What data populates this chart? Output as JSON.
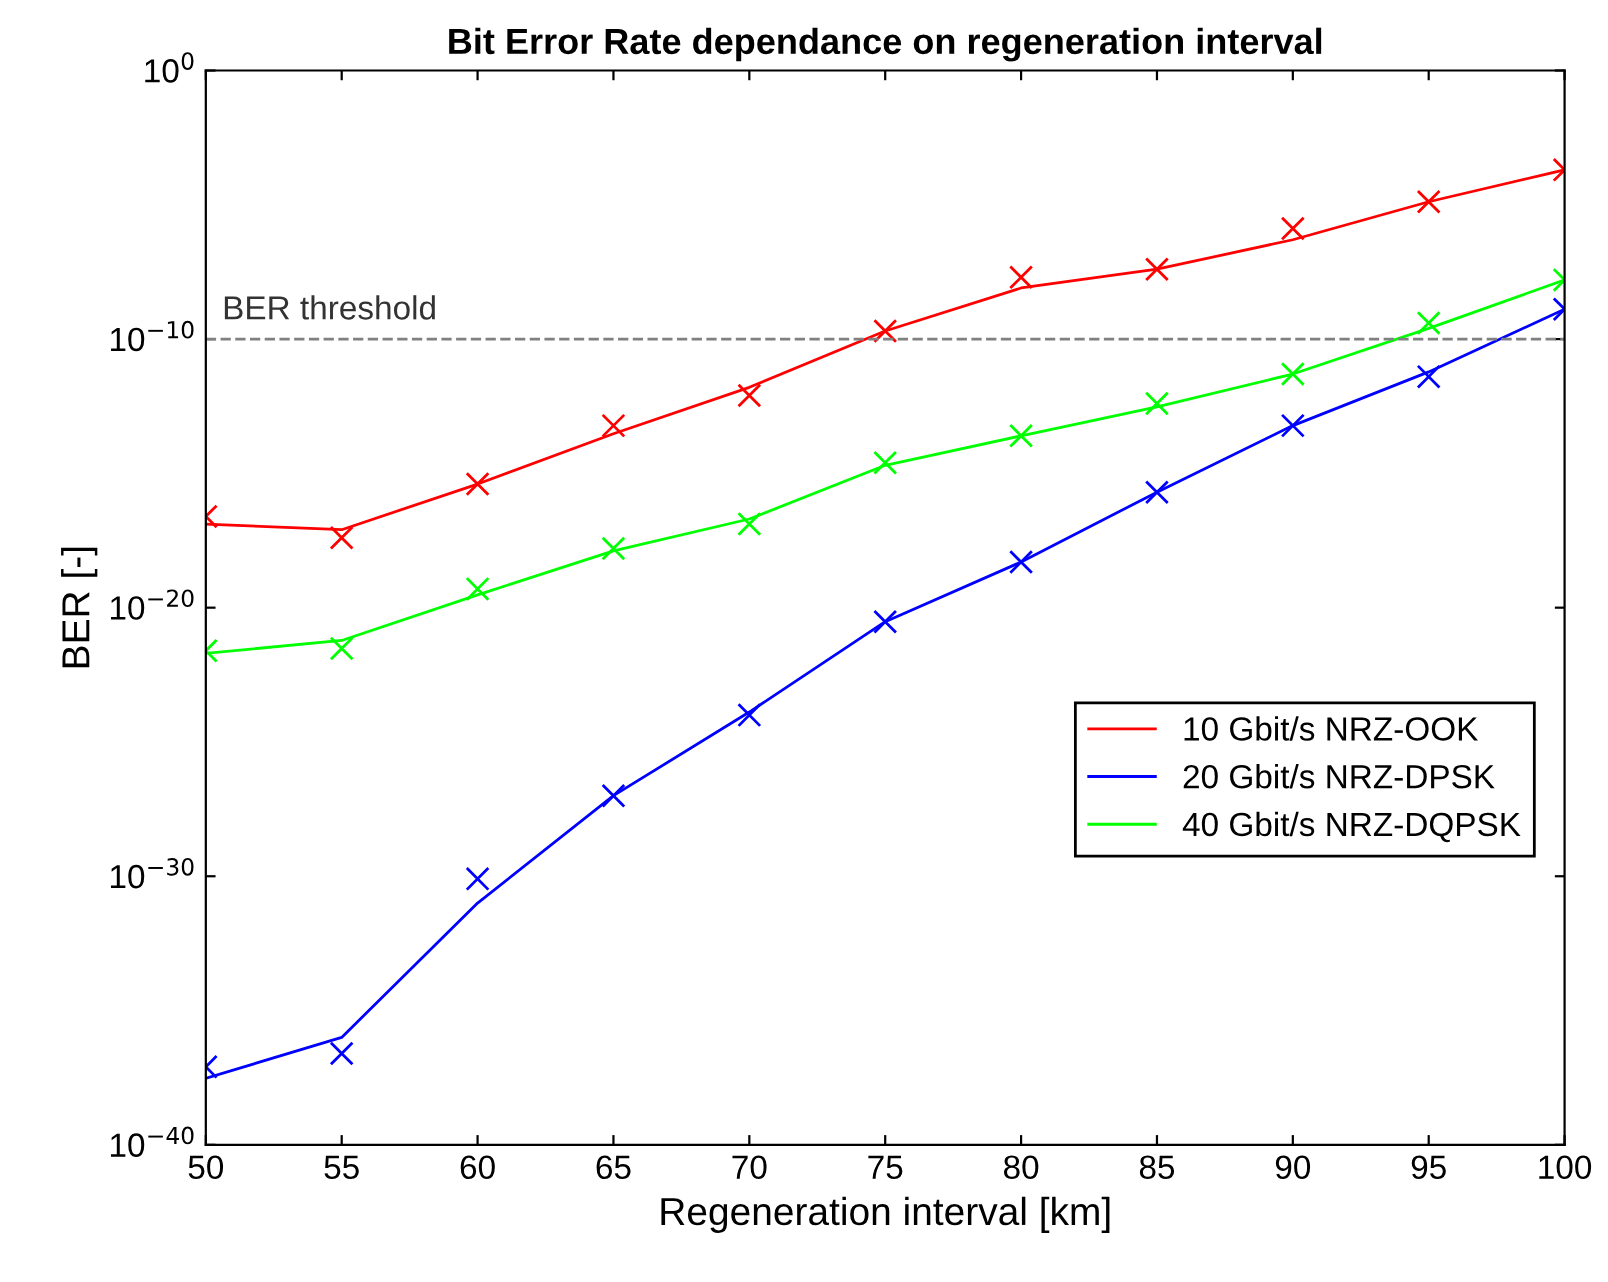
{
  "chart_data": {
    "type": "line",
    "title": "Bit Error Rate dependance on regeneration interval",
    "xlabel": "Regeneration interval [km]",
    "ylabel": "BER [-]",
    "x": [
      50,
      55,
      60,
      65,
      70,
      75,
      80,
      85,
      90,
      95,
      100
    ],
    "series": [
      {
        "name": "10 Gbit/s NRZ-OOK",
        "color": "#ff0000",
        "marker": "none",
        "values": [
          1.3e-17,
          8e-18,
          4e-16,
          3e-14,
          1.6e-12,
          2e-10,
          8e-09,
          4e-08,
          5e-07,
          1.3e-05,
          0.0002
        ]
      },
      {
        "name": "20 Gbit/s NRZ-DPSK",
        "color": "#0000ff",
        "marker": "none",
        "values": [
          3e-38,
          1e-36,
          1e-31,
          1e-27,
          1.3e-24,
          3e-21,
          5e-19,
          2e-16,
          6e-14,
          6e-12,
          1.3e-09
        ]
      },
      {
        "name": "40 Gbit/s NRZ-DQPSK",
        "color": "#00ff00",
        "marker": "none",
        "values": [
          2e-22,
          6e-22,
          3e-20,
          1.3e-18,
          2e-17,
          2e-15,
          2.5e-14,
          3e-13,
          5e-12,
          2.5e-10,
          1.6e-08
        ]
      },
      {
        "color": "#ff0000",
        "type": "scatter",
        "marker": "cross",
        "values": [
          2.5e-17,
          4e-18,
          4e-16,
          6e-14,
          8e-13,
          2e-10,
          2e-08,
          4e-08,
          1.3e-06,
          1.3e-05,
          0.0002
        ]
      },
      {
        "color": "#0000ff",
        "type": "scatter",
        "marker": "cross",
        "values": [
          8e-38,
          2.5e-37,
          8e-31,
          1e-27,
          1e-24,
          3e-21,
          5e-19,
          2e-16,
          6e-14,
          4e-12,
          1.3e-09
        ]
      },
      {
        "color": "#00ff00",
        "type": "scatter",
        "marker": "cross",
        "values": [
          2.5e-22,
          3e-22,
          5e-20,
          1.6e-18,
          1.3e-17,
          2.5e-15,
          2.5e-14,
          4e-13,
          5e-12,
          4e-10,
          1.6e-08
        ]
      }
    ],
    "log": "y",
    "xlim": [
      50,
      100
    ],
    "xticks": [
      50,
      55,
      60,
      65,
      70,
      75,
      80,
      85,
      90,
      95,
      100
    ],
    "ylim": [
      1e-40,
      1
    ],
    "yticks": [
      {
        "value": 1e-40,
        "label": "10$^{−40}$"
      },
      {
        "value": 1e-30,
        "label": "10$^{−30}$"
      },
      {
        "value": 1e-20,
        "label": "10$^{−20}$"
      },
      {
        "value": 1e-10,
        "label": "10$^{−10}$"
      },
      {
        "value": 1,
        "label": "10$^{0}$"
      }
    ],
    "ref_lines": [
      {
        "axis": "y",
        "value": 1e-10,
        "label": "BER threshold",
        "color": "#808080",
        "line_style": "dashed"
      }
    ],
    "grid": false,
    "legend": "right"
  }
}
